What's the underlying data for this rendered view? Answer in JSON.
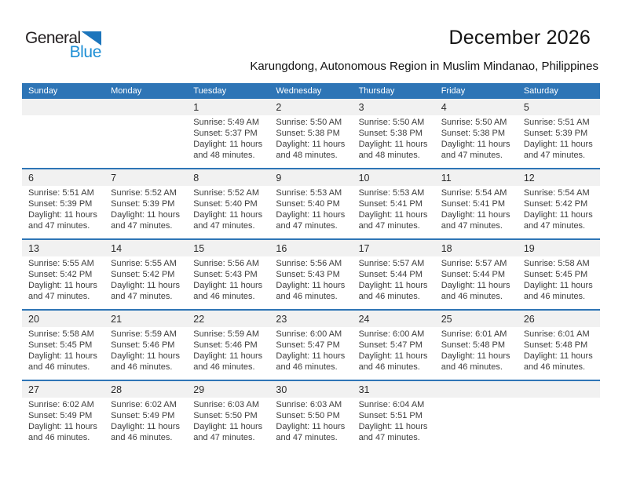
{
  "logo": {
    "general": "General",
    "blue": "Blue"
  },
  "header": {
    "title": "December 2026",
    "subtitle": "Karungdong, Autonomous Region in Muslim Mindanao, Philippines"
  },
  "colors": {
    "header_blue": "#2E75B6",
    "week_divider_blue": "#2E75B6",
    "number_strip_gray": "#F1F1F1",
    "logo_text_blue": "#1E8FD5",
    "logo_triangle_blue": "#1C75BC"
  },
  "weekdays": [
    "Sunday",
    "Monday",
    "Tuesday",
    "Wednesday",
    "Thursday",
    "Friday",
    "Saturday"
  ],
  "weeks": [
    [
      null,
      null,
      {
        "num": "1",
        "sunrise": "Sunrise: 5:49 AM",
        "sunset": "Sunset: 5:37 PM",
        "daylight1": "Daylight: 11 hours",
        "daylight2": "and 48 minutes."
      },
      {
        "num": "2",
        "sunrise": "Sunrise: 5:50 AM",
        "sunset": "Sunset: 5:38 PM",
        "daylight1": "Daylight: 11 hours",
        "daylight2": "and 48 minutes."
      },
      {
        "num": "3",
        "sunrise": "Sunrise: 5:50 AM",
        "sunset": "Sunset: 5:38 PM",
        "daylight1": "Daylight: 11 hours",
        "daylight2": "and 48 minutes."
      },
      {
        "num": "4",
        "sunrise": "Sunrise: 5:50 AM",
        "sunset": "Sunset: 5:38 PM",
        "daylight1": "Daylight: 11 hours",
        "daylight2": "and 47 minutes."
      },
      {
        "num": "5",
        "sunrise": "Sunrise: 5:51 AM",
        "sunset": "Sunset: 5:39 PM",
        "daylight1": "Daylight: 11 hours",
        "daylight2": "and 47 minutes."
      }
    ],
    [
      {
        "num": "6",
        "sunrise": "Sunrise: 5:51 AM",
        "sunset": "Sunset: 5:39 PM",
        "daylight1": "Daylight: 11 hours",
        "daylight2": "and 47 minutes."
      },
      {
        "num": "7",
        "sunrise": "Sunrise: 5:52 AM",
        "sunset": "Sunset: 5:39 PM",
        "daylight1": "Daylight: 11 hours",
        "daylight2": "and 47 minutes."
      },
      {
        "num": "8",
        "sunrise": "Sunrise: 5:52 AM",
        "sunset": "Sunset: 5:40 PM",
        "daylight1": "Daylight: 11 hours",
        "daylight2": "and 47 minutes."
      },
      {
        "num": "9",
        "sunrise": "Sunrise: 5:53 AM",
        "sunset": "Sunset: 5:40 PM",
        "daylight1": "Daylight: 11 hours",
        "daylight2": "and 47 minutes."
      },
      {
        "num": "10",
        "sunrise": "Sunrise: 5:53 AM",
        "sunset": "Sunset: 5:41 PM",
        "daylight1": "Daylight: 11 hours",
        "daylight2": "and 47 minutes."
      },
      {
        "num": "11",
        "sunrise": "Sunrise: 5:54 AM",
        "sunset": "Sunset: 5:41 PM",
        "daylight1": "Daylight: 11 hours",
        "daylight2": "and 47 minutes."
      },
      {
        "num": "12",
        "sunrise": "Sunrise: 5:54 AM",
        "sunset": "Sunset: 5:42 PM",
        "daylight1": "Daylight: 11 hours",
        "daylight2": "and 47 minutes."
      }
    ],
    [
      {
        "num": "13",
        "sunrise": "Sunrise: 5:55 AM",
        "sunset": "Sunset: 5:42 PM",
        "daylight1": "Daylight: 11 hours",
        "daylight2": "and 47 minutes."
      },
      {
        "num": "14",
        "sunrise": "Sunrise: 5:55 AM",
        "sunset": "Sunset: 5:42 PM",
        "daylight1": "Daylight: 11 hours",
        "daylight2": "and 47 minutes."
      },
      {
        "num": "15",
        "sunrise": "Sunrise: 5:56 AM",
        "sunset": "Sunset: 5:43 PM",
        "daylight1": "Daylight: 11 hours",
        "daylight2": "and 46 minutes."
      },
      {
        "num": "16",
        "sunrise": "Sunrise: 5:56 AM",
        "sunset": "Sunset: 5:43 PM",
        "daylight1": "Daylight: 11 hours",
        "daylight2": "and 46 minutes."
      },
      {
        "num": "17",
        "sunrise": "Sunrise: 5:57 AM",
        "sunset": "Sunset: 5:44 PM",
        "daylight1": "Daylight: 11 hours",
        "daylight2": "and 46 minutes."
      },
      {
        "num": "18",
        "sunrise": "Sunrise: 5:57 AM",
        "sunset": "Sunset: 5:44 PM",
        "daylight1": "Daylight: 11 hours",
        "daylight2": "and 46 minutes."
      },
      {
        "num": "19",
        "sunrise": "Sunrise: 5:58 AM",
        "sunset": "Sunset: 5:45 PM",
        "daylight1": "Daylight: 11 hours",
        "daylight2": "and 46 minutes."
      }
    ],
    [
      {
        "num": "20",
        "sunrise": "Sunrise: 5:58 AM",
        "sunset": "Sunset: 5:45 PM",
        "daylight1": "Daylight: 11 hours",
        "daylight2": "and 46 minutes."
      },
      {
        "num": "21",
        "sunrise": "Sunrise: 5:59 AM",
        "sunset": "Sunset: 5:46 PM",
        "daylight1": "Daylight: 11 hours",
        "daylight2": "and 46 minutes."
      },
      {
        "num": "22",
        "sunrise": "Sunrise: 5:59 AM",
        "sunset": "Sunset: 5:46 PM",
        "daylight1": "Daylight: 11 hours",
        "daylight2": "and 46 minutes."
      },
      {
        "num": "23",
        "sunrise": "Sunrise: 6:00 AM",
        "sunset": "Sunset: 5:47 PM",
        "daylight1": "Daylight: 11 hours",
        "daylight2": "and 46 minutes."
      },
      {
        "num": "24",
        "sunrise": "Sunrise: 6:00 AM",
        "sunset": "Sunset: 5:47 PM",
        "daylight1": "Daylight: 11 hours",
        "daylight2": "and 46 minutes."
      },
      {
        "num": "25",
        "sunrise": "Sunrise: 6:01 AM",
        "sunset": "Sunset: 5:48 PM",
        "daylight1": "Daylight: 11 hours",
        "daylight2": "and 46 minutes."
      },
      {
        "num": "26",
        "sunrise": "Sunrise: 6:01 AM",
        "sunset": "Sunset: 5:48 PM",
        "daylight1": "Daylight: 11 hours",
        "daylight2": "and 46 minutes."
      }
    ],
    [
      {
        "num": "27",
        "sunrise": "Sunrise: 6:02 AM",
        "sunset": "Sunset: 5:49 PM",
        "daylight1": "Daylight: 11 hours",
        "daylight2": "and 46 minutes."
      },
      {
        "num": "28",
        "sunrise": "Sunrise: 6:02 AM",
        "sunset": "Sunset: 5:49 PM",
        "daylight1": "Daylight: 11 hours",
        "daylight2": "and 46 minutes."
      },
      {
        "num": "29",
        "sunrise": "Sunrise: 6:03 AM",
        "sunset": "Sunset: 5:50 PM",
        "daylight1": "Daylight: 11 hours",
        "daylight2": "and 47 minutes."
      },
      {
        "num": "30",
        "sunrise": "Sunrise: 6:03 AM",
        "sunset": "Sunset: 5:50 PM",
        "daylight1": "Daylight: 11 hours",
        "daylight2": "and 47 minutes."
      },
      {
        "num": "31",
        "sunrise": "Sunrise: 6:04 AM",
        "sunset": "Sunset: 5:51 PM",
        "daylight1": "Daylight: 11 hours",
        "daylight2": "and 47 minutes."
      },
      null,
      null
    ]
  ]
}
